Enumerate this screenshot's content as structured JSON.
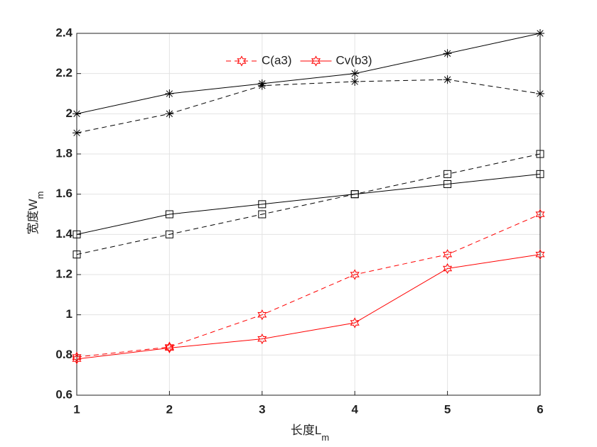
{
  "chart_data": {
    "type": "line",
    "xlabel": {
      "main": "长度L",
      "sub": "m"
    },
    "ylabel": {
      "main": "宽度W",
      "sub": "m"
    },
    "x": [
      1,
      2,
      3,
      4,
      5,
      6
    ],
    "xlim": [
      1,
      6
    ],
    "xticks": [
      1,
      2,
      3,
      4,
      5,
      6
    ],
    "ylim": [
      0.6,
      2.4
    ],
    "yticks": [
      0.6,
      0.8,
      1,
      1.2,
      1.4,
      1.6,
      1.8,
      2,
      2.2,
      2.4
    ],
    "grid": true,
    "legend": "north",
    "series": [
      {
        "color": "#000000",
        "linestyle": "solid",
        "marker": "star",
        "values": [
          2.0,
          2.1,
          2.15,
          2.2,
          2.3,
          2.4
        ]
      },
      {
        "color": "#000000",
        "linestyle": "dashed",
        "marker": "star",
        "values": [
          1.905,
          2.0,
          2.14,
          2.16,
          2.17,
          2.1
        ]
      },
      {
        "color": "#000000",
        "linestyle": "dashed",
        "marker": "square",
        "values": [
          1.3,
          1.4,
          1.5,
          1.6,
          1.7,
          1.8
        ]
      },
      {
        "color": "#000000",
        "linestyle": "solid",
        "marker": "square",
        "values": [
          1.4,
          1.5,
          1.55,
          1.6,
          1.65,
          1.7
        ]
      },
      {
        "name": "C(a3)",
        "color": "#ff0000",
        "linestyle": "dashed",
        "marker": "hexagram",
        "values": [
          0.79,
          0.84,
          1.0,
          1.2,
          1.3,
          1.5
        ]
      },
      {
        "name": "Cv(b3)",
        "color": "#ff0000",
        "linestyle": "solid",
        "marker": "hexagram",
        "values": [
          0.78,
          0.835,
          0.88,
          0.96,
          1.23,
          1.3
        ]
      }
    ]
  }
}
